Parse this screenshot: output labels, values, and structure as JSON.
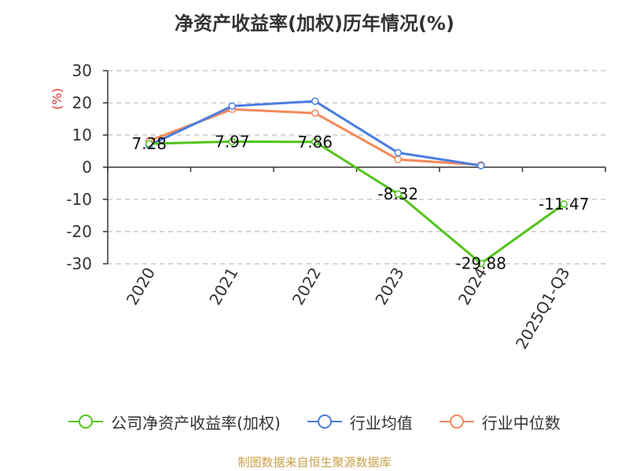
{
  "chart_data": {
    "type": "line",
    "title": "净资产收益率(加权)历年情况(%)",
    "ylabel": "(%)",
    "xlabel": "",
    "categories": [
      "2020",
      "2021",
      "2022",
      "2023",
      "2024",
      "2025Q1-Q3"
    ],
    "ylim": [
      -30,
      30
    ],
    "yticks": [
      30,
      20,
      10,
      0,
      -10,
      -20,
      -30
    ],
    "grid": true,
    "legend_position": "bottom",
    "series": [
      {
        "name": "公司净资产收益率(加权)",
        "color": "#52c41a",
        "values": [
          7.28,
          7.97,
          7.86,
          -8.32,
          -29.88,
          -11.47
        ],
        "labels": [
          "7.28",
          "7.97",
          "7.86",
          "-8.32",
          "-29.88",
          "-11.47"
        ]
      },
      {
        "name": "行业均值",
        "color": "#4a7de0",
        "values": [
          6.8,
          19.0,
          20.5,
          4.5,
          0.5,
          null
        ]
      },
      {
        "name": "行业中位数",
        "color": "#f5895a",
        "values": [
          8.2,
          18.0,
          16.8,
          2.4,
          0.7,
          null
        ]
      }
    ]
  },
  "footer": "制图数据来自恒生聚源数据库"
}
